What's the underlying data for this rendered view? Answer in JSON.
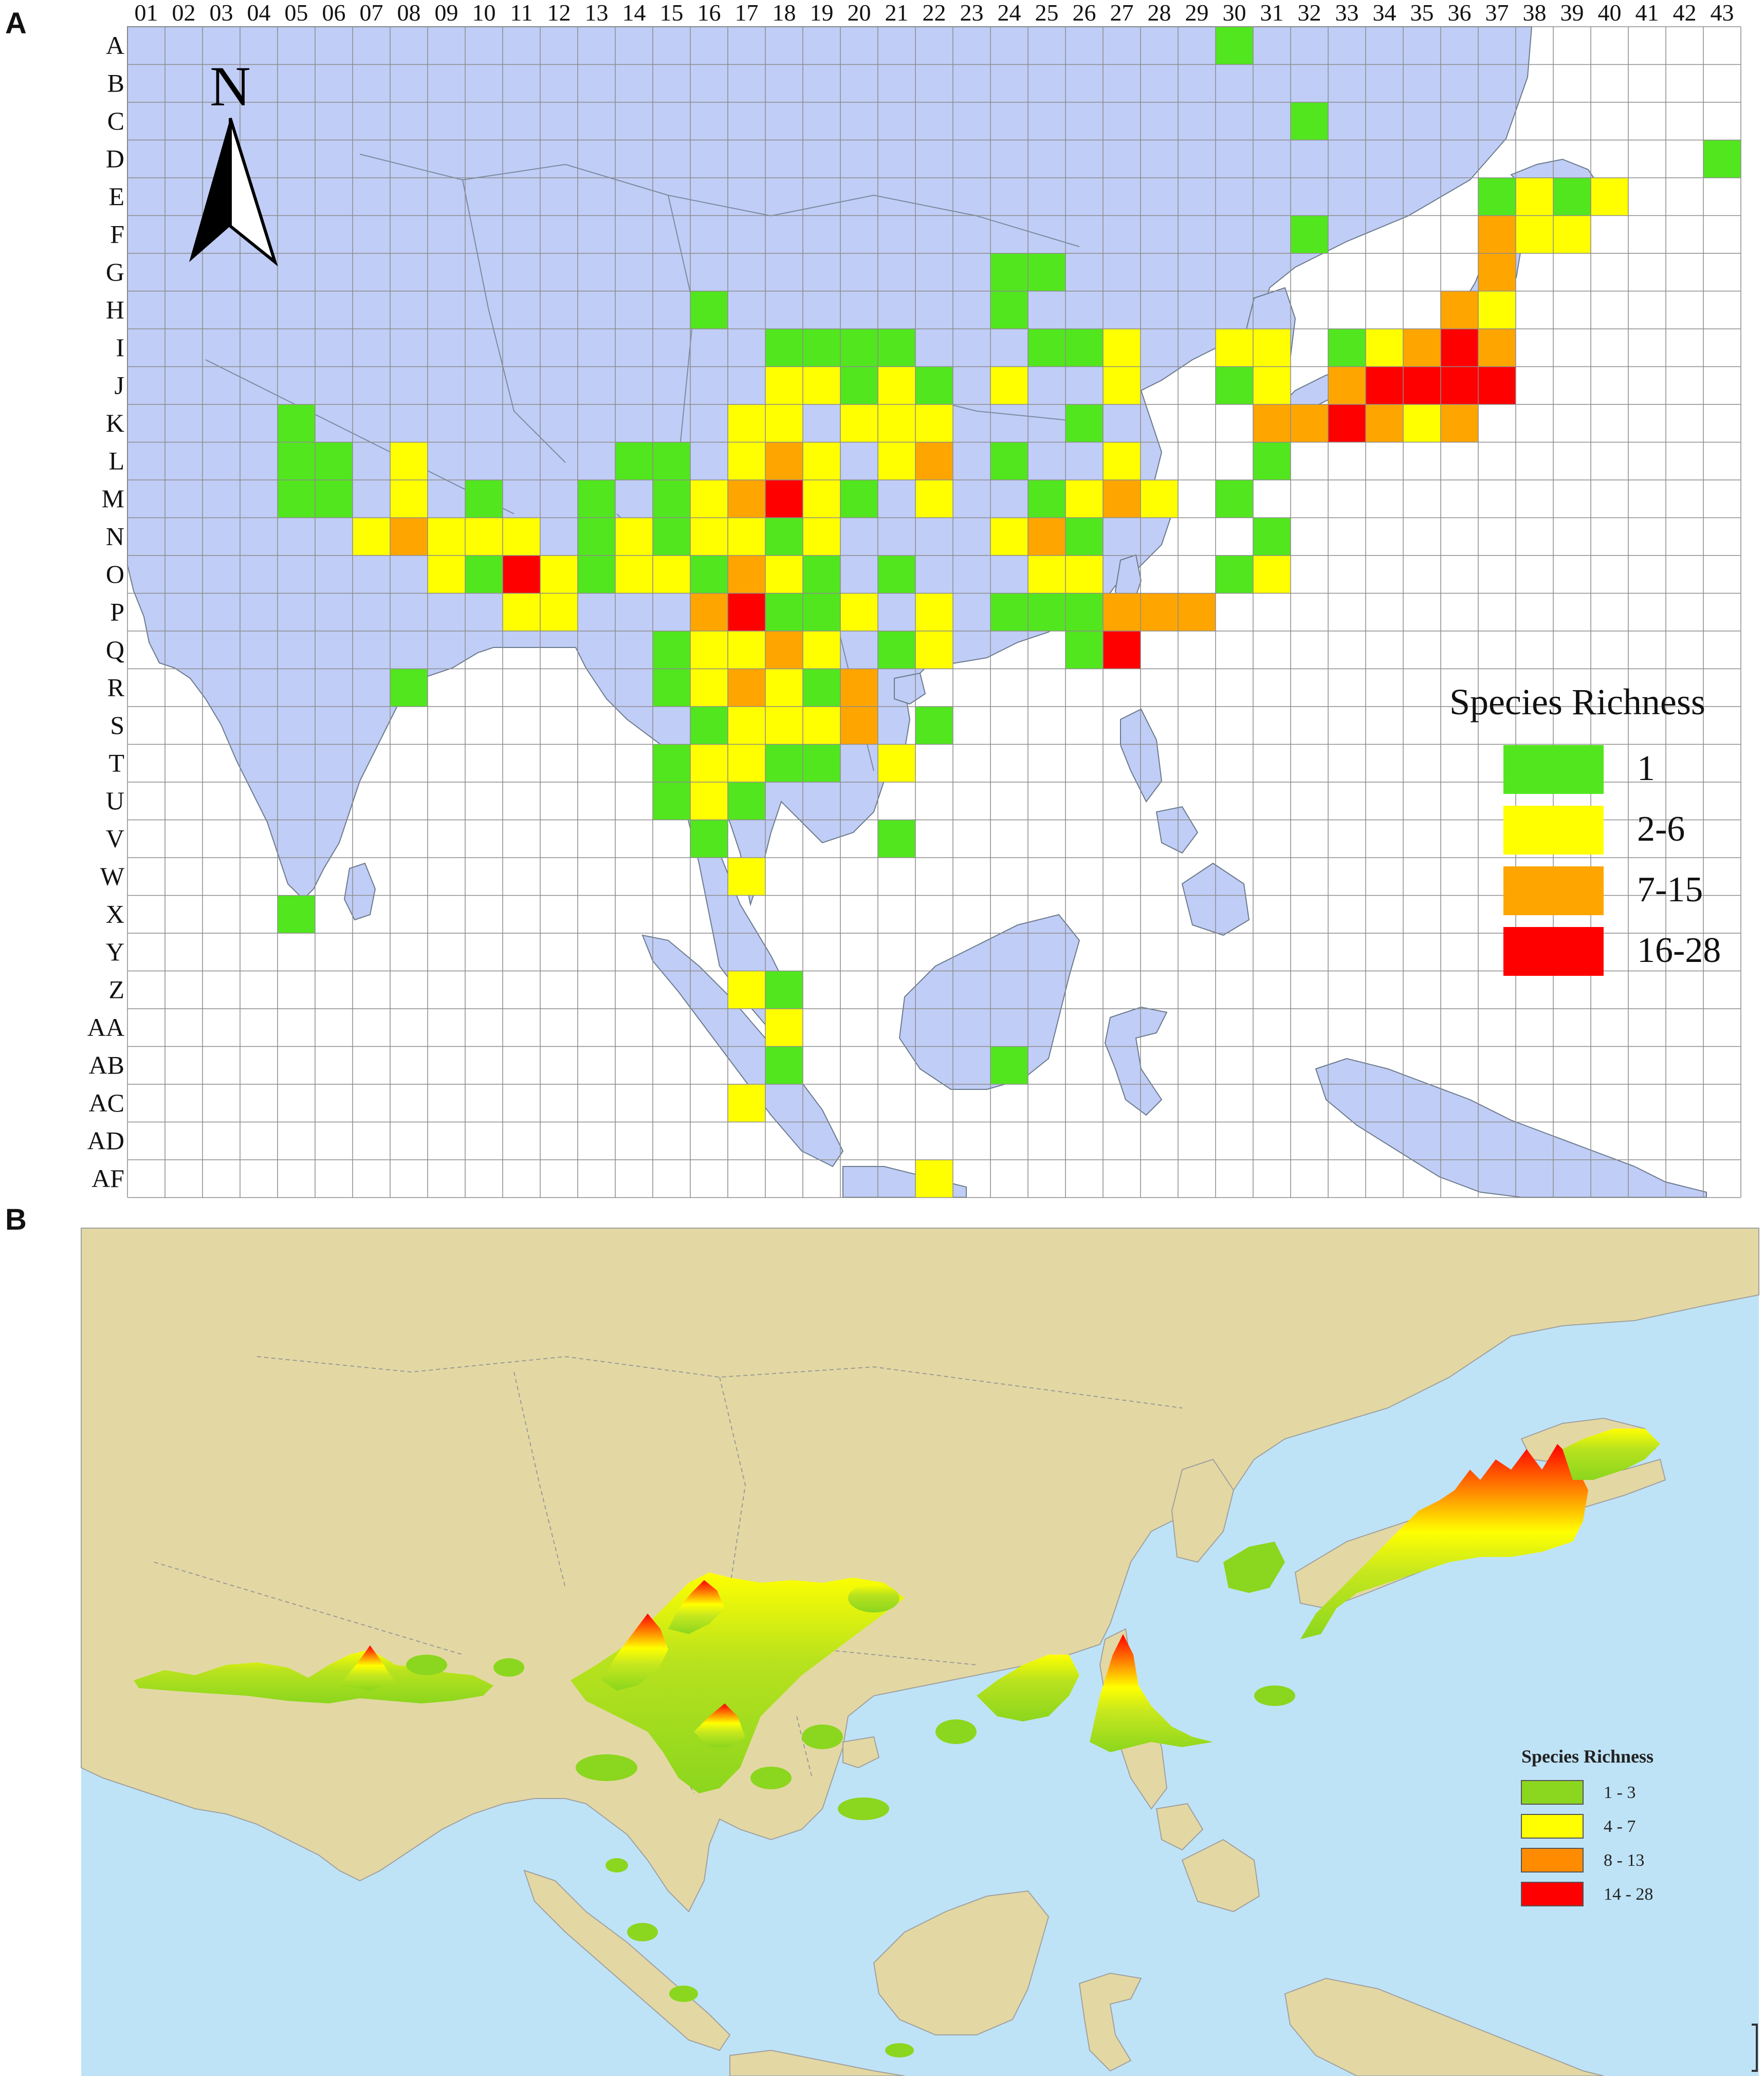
{
  "panel_a": {
    "label": "A",
    "columns": [
      "01",
      "02",
      "03",
      "04",
      "05",
      "06",
      "07",
      "08",
      "09",
      "10",
      "11",
      "12",
      "13",
      "14",
      "15",
      "16",
      "17",
      "18",
      "19",
      "20",
      "21",
      "22",
      "23",
      "24",
      "25",
      "26",
      "27",
      "28",
      "29",
      "30",
      "31",
      "32",
      "33",
      "34",
      "35",
      "36",
      "37",
      "38",
      "39",
      "40",
      "41",
      "42",
      "43"
    ],
    "rows": [
      "A",
      "B",
      "C",
      "D",
      "E",
      "F",
      "G",
      "H",
      "I",
      "J",
      "K",
      "L",
      "M",
      "N",
      "O",
      "P",
      "Q",
      "R",
      "S",
      "T",
      "U",
      "V",
      "W",
      "X",
      "Y",
      "Z",
      "AA",
      "AB",
      "AC",
      "AD",
      "AF"
    ],
    "north_label": "N",
    "legend": {
      "title": "Species Richness",
      "items": [
        {
          "label": "1",
          "color": "#52e61e"
        },
        {
          "label": "2-6",
          "color": "#ffff00"
        },
        {
          "label": "7-15",
          "color": "#ffa500"
        },
        {
          "label": "16-28",
          "color": "#ff0000"
        }
      ]
    },
    "land_color": "#c0cdf6",
    "sea_color": "#ffffff",
    "cells": [
      [
        "A",
        "30",
        1
      ],
      [
        "C",
        "32",
        1
      ],
      [
        "D",
        "43",
        1
      ],
      [
        "E",
        "37",
        1
      ],
      [
        "E",
        "38",
        2
      ],
      [
        "E",
        "39",
        1
      ],
      [
        "E",
        "40",
        2
      ],
      [
        "F",
        "32",
        1
      ],
      [
        "F",
        "37",
        7
      ],
      [
        "F",
        "38",
        2
      ],
      [
        "F",
        "39",
        2
      ],
      [
        "G",
        "24",
        1
      ],
      [
        "G",
        "25",
        1
      ],
      [
        "G",
        "37",
        7
      ],
      [
        "H",
        "16",
        1
      ],
      [
        "H",
        "24",
        1
      ],
      [
        "H",
        "36",
        7
      ],
      [
        "H",
        "37",
        2
      ],
      [
        "I",
        "18",
        1
      ],
      [
        "I",
        "19",
        1
      ],
      [
        "I",
        "20",
        1
      ],
      [
        "I",
        "21",
        1
      ],
      [
        "I",
        "25",
        1
      ],
      [
        "I",
        "26",
        1
      ],
      [
        "I",
        "27",
        2
      ],
      [
        "I",
        "30",
        2
      ],
      [
        "I",
        "31",
        2
      ],
      [
        "I",
        "33",
        1
      ],
      [
        "I",
        "34",
        2
      ],
      [
        "I",
        "35",
        7
      ],
      [
        "I",
        "36",
        16
      ],
      [
        "I",
        "37",
        7
      ],
      [
        "J",
        "18",
        2
      ],
      [
        "J",
        "19",
        2
      ],
      [
        "J",
        "20",
        1
      ],
      [
        "J",
        "21",
        2
      ],
      [
        "J",
        "22",
        1
      ],
      [
        "J",
        "24",
        2
      ],
      [
        "J",
        "27",
        2
      ],
      [
        "J",
        "30",
        1
      ],
      [
        "J",
        "31",
        2
      ],
      [
        "J",
        "33",
        7
      ],
      [
        "J",
        "34",
        16
      ],
      [
        "J",
        "35",
        16
      ],
      [
        "J",
        "36",
        16
      ],
      [
        "J",
        "37",
        16
      ],
      [
        "K",
        "05",
        1
      ],
      [
        "K",
        "17",
        2
      ],
      [
        "K",
        "18",
        2
      ],
      [
        "K",
        "20",
        2
      ],
      [
        "K",
        "21",
        2
      ],
      [
        "K",
        "22",
        2
      ],
      [
        "K",
        "26",
        1
      ],
      [
        "K",
        "31",
        7
      ],
      [
        "K",
        "32",
        7
      ],
      [
        "K",
        "33",
        16
      ],
      [
        "K",
        "34",
        7
      ],
      [
        "K",
        "35",
        2
      ],
      [
        "K",
        "36",
        7
      ],
      [
        "L",
        "05",
        1
      ],
      [
        "L",
        "06",
        1
      ],
      [
        "L",
        "08",
        2
      ],
      [
        "L",
        "14",
        1
      ],
      [
        "L",
        "15",
        1
      ],
      [
        "L",
        "17",
        2
      ],
      [
        "L",
        "18",
        7
      ],
      [
        "L",
        "19",
        2
      ],
      [
        "L",
        "21",
        2
      ],
      [
        "L",
        "22",
        7
      ],
      [
        "L",
        "24",
        1
      ],
      [
        "L",
        "27",
        2
      ],
      [
        "L",
        "31",
        1
      ],
      [
        "M",
        "05",
        1
      ],
      [
        "M",
        "06",
        1
      ],
      [
        "M",
        "08",
        2
      ],
      [
        "M",
        "10",
        1
      ],
      [
        "M",
        "13",
        1
      ],
      [
        "M",
        "15",
        1
      ],
      [
        "M",
        "16",
        2
      ],
      [
        "M",
        "17",
        7
      ],
      [
        "M",
        "18",
        16
      ],
      [
        "M",
        "19",
        2
      ],
      [
        "M",
        "20",
        1
      ],
      [
        "M",
        "22",
        2
      ],
      [
        "M",
        "25",
        1
      ],
      [
        "M",
        "26",
        2
      ],
      [
        "M",
        "27",
        7
      ],
      [
        "M",
        "28",
        2
      ],
      [
        "M",
        "30",
        1
      ],
      [
        "N",
        "07",
        2
      ],
      [
        "N",
        "08",
        7
      ],
      [
        "N",
        "09",
        2
      ],
      [
        "N",
        "10",
        2
      ],
      [
        "N",
        "11",
        2
      ],
      [
        "N",
        "13",
        1
      ],
      [
        "N",
        "14",
        2
      ],
      [
        "N",
        "15",
        1
      ],
      [
        "N",
        "16",
        2
      ],
      [
        "N",
        "17",
        2
      ],
      [
        "N",
        "18",
        1
      ],
      [
        "N",
        "19",
        2
      ],
      [
        "N",
        "24",
        2
      ],
      [
        "N",
        "25",
        7
      ],
      [
        "N",
        "26",
        1
      ],
      [
        "N",
        "31",
        1
      ],
      [
        "O",
        "09",
        2
      ],
      [
        "O",
        "10",
        1
      ],
      [
        "O",
        "11",
        16
      ],
      [
        "O",
        "12",
        2
      ],
      [
        "O",
        "13",
        1
      ],
      [
        "O",
        "14",
        2
      ],
      [
        "O",
        "15",
        2
      ],
      [
        "O",
        "16",
        1
      ],
      [
        "O",
        "17",
        7
      ],
      [
        "O",
        "18",
        2
      ],
      [
        "O",
        "19",
        1
      ],
      [
        "O",
        "21",
        1
      ],
      [
        "O",
        "25",
        2
      ],
      [
        "O",
        "26",
        2
      ],
      [
        "O",
        "30",
        1
      ],
      [
        "O",
        "31",
        2
      ],
      [
        "P",
        "11",
        2
      ],
      [
        "P",
        "12",
        2
      ],
      [
        "P",
        "16",
        7
      ],
      [
        "P",
        "17",
        16
      ],
      [
        "P",
        "18",
        1
      ],
      [
        "P",
        "19",
        1
      ],
      [
        "P",
        "20",
        2
      ],
      [
        "P",
        "22",
        2
      ],
      [
        "P",
        "24",
        1
      ],
      [
        "P",
        "25",
        1
      ],
      [
        "P",
        "26",
        1
      ],
      [
        "P",
        "27",
        7
      ],
      [
        "P",
        "28",
        7
      ],
      [
        "P",
        "29",
        7
      ],
      [
        "Q",
        "15",
        1
      ],
      [
        "Q",
        "16",
        2
      ],
      [
        "Q",
        "17",
        2
      ],
      [
        "Q",
        "18",
        7
      ],
      [
        "Q",
        "19",
        2
      ],
      [
        "Q",
        "21",
        1
      ],
      [
        "Q",
        "22",
        2
      ],
      [
        "Q",
        "26",
        1
      ],
      [
        "Q",
        "27",
        16
      ],
      [
        "R",
        "08",
        1
      ],
      [
        "R",
        "15",
        1
      ],
      [
        "R",
        "16",
        2
      ],
      [
        "R",
        "17",
        7
      ],
      [
        "R",
        "18",
        2
      ],
      [
        "R",
        "19",
        1
      ],
      [
        "R",
        "20",
        7
      ],
      [
        "S",
        "16",
        1
      ],
      [
        "S",
        "17",
        2
      ],
      [
        "S",
        "18",
        2
      ],
      [
        "S",
        "19",
        2
      ],
      [
        "S",
        "20",
        7
      ],
      [
        "S",
        "22",
        1
      ],
      [
        "T",
        "15",
        1
      ],
      [
        "T",
        "16",
        2
      ],
      [
        "T",
        "17",
        2
      ],
      [
        "T",
        "18",
        1
      ],
      [
        "T",
        "19",
        1
      ],
      [
        "T",
        "21",
        2
      ],
      [
        "U",
        "15",
        1
      ],
      [
        "U",
        "16",
        2
      ],
      [
        "U",
        "17",
        1
      ],
      [
        "V",
        "16",
        1
      ],
      [
        "V",
        "21",
        1
      ],
      [
        "W",
        "17",
        2
      ],
      [
        "X",
        "05",
        1
      ],
      [
        "Z",
        "17",
        2
      ],
      [
        "Z",
        "18",
        1
      ],
      [
        "AA",
        "18",
        2
      ],
      [
        "AB",
        "18",
        1
      ],
      [
        "AB",
        "24",
        1
      ],
      [
        "AC",
        "17",
        2
      ],
      [
        "AF",
        "22",
        2
      ]
    ]
  },
  "panel_b": {
    "label": "B",
    "legend": {
      "title": "Species Richness",
      "items": [
        {
          "label": "1 - 3",
          "color": "#8bd61e"
        },
        {
          "label": "4 - 7",
          "color": "#ffff00"
        },
        {
          "label": "8 - 13",
          "color": "#ff8c00"
        },
        {
          "label": "14 - 28",
          "color": "#ff0000"
        }
      ]
    },
    "land_color": "#e3d8a3",
    "sea_color": "#bfe3f6"
  }
}
